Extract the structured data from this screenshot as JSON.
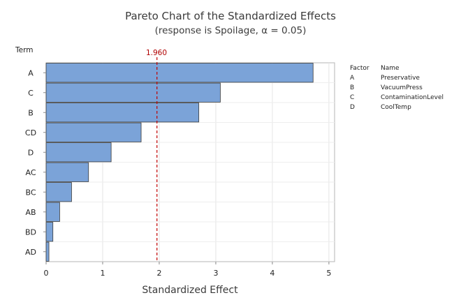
{
  "chart_data": {
    "type": "bar",
    "orientation": "horizontal",
    "title": "Pareto Chart of the Standardized Effects",
    "subtitle": "(response is Spoilage, α = 0.05)",
    "xlabel": "Standardized Effect",
    "ylabel": "Term",
    "xlim": [
      0,
      5.1
    ],
    "xticks": [
      "0",
      "1",
      "2",
      "3",
      "4",
      "5"
    ],
    "categories": [
      "A",
      "C",
      "B",
      "CD",
      "D",
      "AC",
      "BC",
      "AB",
      "BD",
      "AD"
    ],
    "values": [
      4.72,
      3.08,
      2.7,
      1.68,
      1.15,
      0.75,
      0.45,
      0.24,
      0.12,
      0.05
    ],
    "reference_line": {
      "value": 1.96,
      "label": "1.960",
      "color": "#c00000"
    },
    "grid": true,
    "bar_color": "#7ba3d8",
    "bar_edge_color": "#3a3a3a",
    "legend": {
      "placement": "right",
      "headers": {
        "factor": "Factor",
        "name": "Name"
      },
      "entries": [
        {
          "factor": "A",
          "name": "Preservative"
        },
        {
          "factor": "B",
          "name": "VacuumPress"
        },
        {
          "factor": "C",
          "name": "ContaminationLevel"
        },
        {
          "factor": "D",
          "name": "CoolTemp"
        }
      ]
    }
  }
}
